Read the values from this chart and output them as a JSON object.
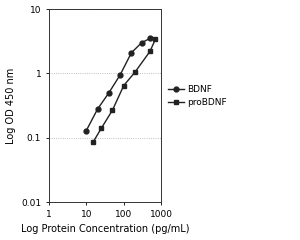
{
  "title": "",
  "xlabel": "Log Protein Concentration (pg/mL)",
  "ylabel": "Log OD 450 nm",
  "xlim": [
    1,
    1000
  ],
  "ylim": [
    0.01,
    10
  ],
  "bdnf_x": [
    10,
    20,
    40,
    80,
    160,
    300,
    500
  ],
  "bdnf_y": [
    0.13,
    0.28,
    0.5,
    0.95,
    2.1,
    3.0,
    3.5
  ],
  "probdnf_x": [
    15,
    25,
    50,
    100,
    200,
    500,
    700
  ],
  "probdnf_y": [
    0.085,
    0.14,
    0.27,
    0.65,
    1.05,
    2.2,
    3.4
  ],
  "line_color": "#222222",
  "bdnf_marker": "o",
  "probdnf_marker": "s",
  "marker_size": 3.5,
  "legend_labels": [
    "BDNF",
    "proBDNF"
  ],
  "background_color": "#ffffff",
  "grid_color": "#aaaaaa",
  "label_fontsize": 7,
  "tick_fontsize": 6.5,
  "legend_fontsize": 6.5
}
